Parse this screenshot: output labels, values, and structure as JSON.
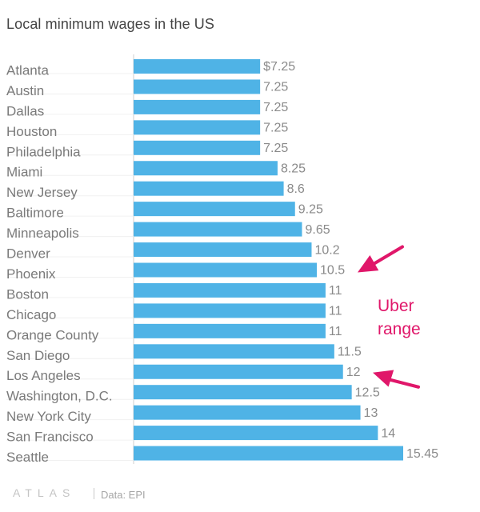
{
  "chart_data": {
    "type": "bar",
    "orientation": "horizontal",
    "title": "Local minimum wages in the US",
    "categories": [
      "Atlanta",
      "Austin",
      "Dallas",
      "Houston",
      "Philadelphia",
      "Miami",
      "New Jersey",
      "Baltimore",
      "Minneapolis",
      "Denver",
      "Phoenix",
      "Boston",
      "Chicago",
      "Orange County",
      "San Diego",
      "Los Angeles",
      "Washington, D.C.",
      "New York City",
      "San Francisco",
      "Seattle"
    ],
    "values": [
      7.25,
      7.25,
      7.25,
      7.25,
      7.25,
      8.25,
      8.6,
      9.25,
      9.65,
      10.2,
      10.5,
      11,
      11,
      11,
      11.5,
      12,
      12.5,
      13,
      14,
      15.45
    ],
    "value_labels": [
      "$7.25",
      "7.25",
      "7.25",
      "7.25",
      "7.25",
      "8.25",
      "8.6",
      "9.25",
      "9.65",
      "10.2",
      "10.5",
      "11",
      "11",
      "11",
      "11.5",
      "12",
      "12.5",
      "13",
      "14",
      "15.45"
    ],
    "xlim": [
      0,
      15.45
    ],
    "bar_color": "#4fb3e6",
    "annotation": {
      "lines": [
        "Uber",
        "range"
      ],
      "color": "#e0176a",
      "points_to": [
        "Phoenix",
        "Los Angeles"
      ]
    },
    "grid": false,
    "legend": "none"
  },
  "footer": {
    "logo": "ATLAS",
    "source": "Data: EPI"
  }
}
